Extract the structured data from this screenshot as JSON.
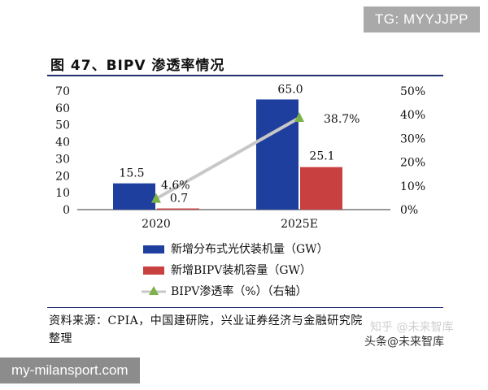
{
  "badges": {
    "top_right": "TG: MYYJJPP",
    "bottom_left": "my-milansport.com"
  },
  "figure": {
    "title": "图 47、BIPV 渗透率情况",
    "source_line1": "资料来源：CPIA，中国建研院，兴业证券经济与金融研究院",
    "source_line2": "整理",
    "watermark": "头条@未来智库",
    "watermark_faint": "知乎 @未来智库"
  },
  "colors": {
    "series1": "#1e3f9e",
    "series2": "#c94040",
    "line": "#c8c8c8",
    "marker": "#7bb34a",
    "rule": "#1f2f6e"
  },
  "chart_data": {
    "type": "bar",
    "categories": [
      "2020",
      "2025E"
    ],
    "series": [
      {
        "name": "新增分布式光伏装机量（GW）",
        "type": "bar",
        "axis": "left",
        "values": [
          15.5,
          65.0
        ],
        "labels": [
          "15.5",
          "65.0"
        ]
      },
      {
        "name": "新增BIPV装机容量（GW）",
        "type": "bar",
        "axis": "left",
        "values": [
          0.7,
          25.1
        ],
        "labels": [
          "0.7",
          "25.1"
        ]
      },
      {
        "name": "BIPV渗透率（%）（右轴）",
        "type": "line",
        "axis": "right",
        "values": [
          4.6,
          38.7
        ],
        "labels": [
          "4.6%",
          "38.7%"
        ]
      }
    ],
    "y_left": {
      "range": [
        0,
        70
      ],
      "ticks": [
        "0",
        "10",
        "20",
        "30",
        "40",
        "50",
        "60",
        "70"
      ]
    },
    "y_right": {
      "range": [
        0,
        50
      ],
      "ticks": [
        "0%",
        "10%",
        "20%",
        "30%",
        "40%",
        "50%"
      ]
    },
    "grid": false,
    "legend_position": "bottom"
  }
}
